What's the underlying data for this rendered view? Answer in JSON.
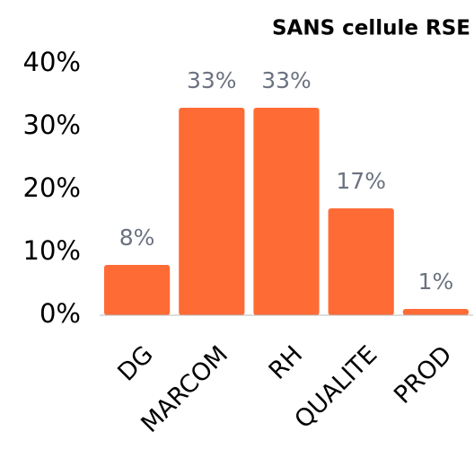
{
  "chart_data": {
    "type": "bar",
    "title": "SANS cellule RSE",
    "categories": [
      "DG",
      "MARCOM",
      "RH",
      "QUALITE",
      "PROD"
    ],
    "values": [
      8,
      33,
      33,
      17,
      1
    ],
    "value_labels": [
      "8%",
      "33%",
      "33%",
      "17%",
      "1%"
    ],
    "color": "#ff6b35",
    "ylim": [
      0,
      40
    ],
    "yticks": [
      {
        "value": 0,
        "label": "0%"
      },
      {
        "value": 10,
        "label": "10%"
      },
      {
        "value": 20,
        "label": "20%"
      },
      {
        "value": 30,
        "label": "30%"
      },
      {
        "value": 40,
        "label": "40%"
      }
    ],
    "grid": false
  }
}
